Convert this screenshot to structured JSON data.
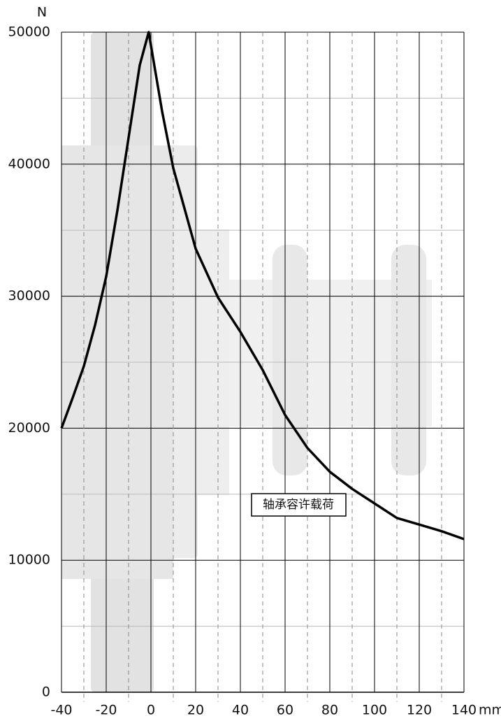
{
  "chart_data": {
    "type": "line",
    "y_label": "N",
    "x_label": "mm",
    "annotation": "轴承容许载荷",
    "x": [
      -40,
      -35,
      -30,
      -25,
      -20,
      -15,
      -10,
      -5,
      -1,
      5,
      10,
      20,
      30,
      40,
      50,
      60,
      70,
      80,
      90,
      100,
      110,
      120,
      130,
      140
    ],
    "values": [
      20000,
      22300,
      24700,
      27800,
      31500,
      36500,
      42000,
      47500,
      50000,
      44000,
      39700,
      33600,
      29900,
      27300,
      24400,
      21000,
      18500,
      16700,
      15400,
      14300,
      13200,
      12700,
      12200,
      11600
    ],
    "color": "#000000",
    "xlim": [
      -40,
      140
    ],
    "xticks": [
      -40,
      -20,
      0,
      20,
      40,
      60,
      80,
      100,
      120,
      140
    ],
    "ylim": [
      0,
      50000
    ],
    "yticks": [
      0,
      10000,
      20000,
      30000,
      40000,
      50000
    ],
    "grid": true
  }
}
